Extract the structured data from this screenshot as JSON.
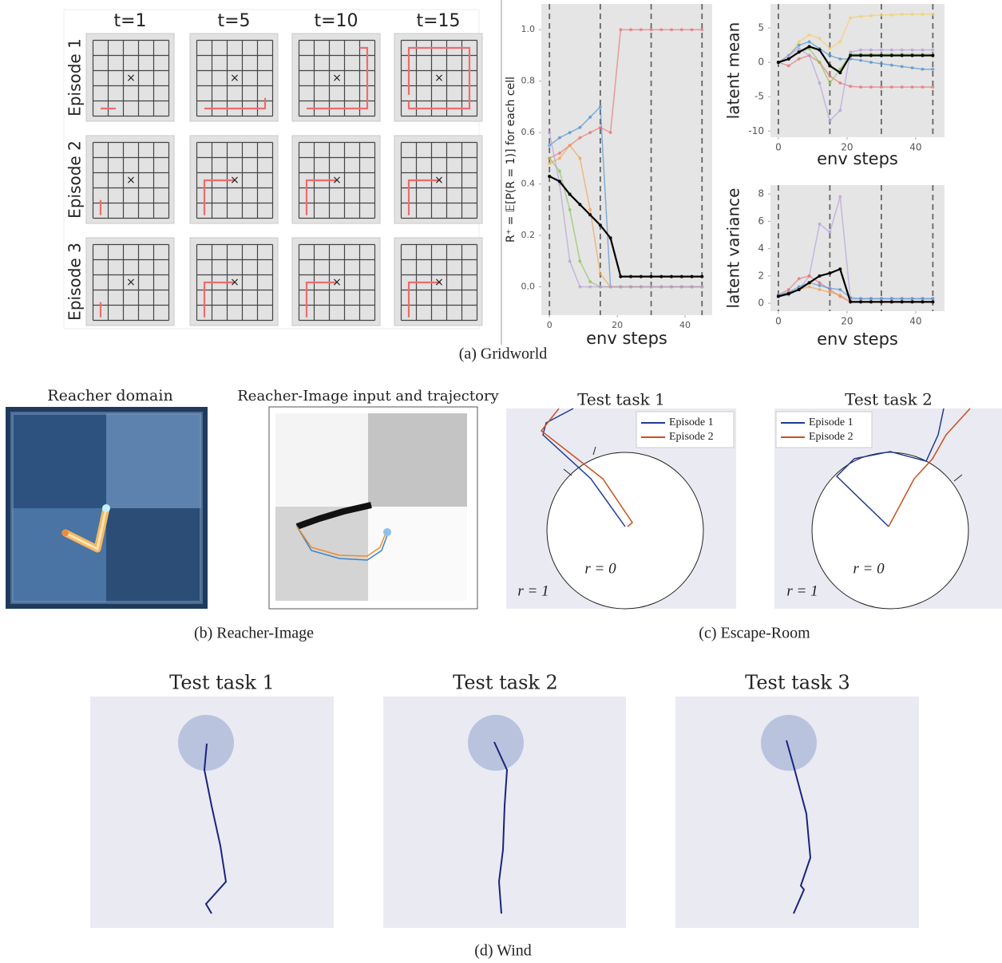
{
  "gridworld": {
    "columns": [
      "t=1",
      "t=5",
      "t=10",
      "t=15"
    ],
    "rows": [
      "Episode 1",
      "Episode 2",
      "Episode 3"
    ],
    "goal_marker": "×",
    "caption": "(a) Gridworld"
  },
  "chart_data": [
    {
      "type": "line",
      "ylabel": "R⁺ = 𝔼[P(R = 1)] for each cell",
      "xlabel": "env steps",
      "x": [
        0,
        3,
        6,
        9,
        12,
        15,
        18,
        21,
        24,
        27,
        30,
        33,
        36,
        39,
        42,
        45
      ],
      "xlim": [
        -2.4,
        48
      ],
      "ylim": [
        -0.11,
        1.1
      ],
      "xticks": [
        0,
        20,
        40
      ],
      "yticks": [
        {
          "value": 0,
          "label": "0.0"
        },
        0.2,
        0.4,
        0.6,
        0.8,
        {
          "value": 1,
          "label": "1.0"
        }
      ],
      "vlines": [
        0,
        15,
        30,
        45
      ],
      "series": [
        {
          "color": "#e8706e",
          "values": [
            0.5,
            0.52,
            0.55,
            0.58,
            0.6,
            0.62,
            0.6,
            1.0,
            1.0,
            1.0,
            1.0,
            1.0,
            1.0,
            1.0,
            1.0,
            1.0
          ]
        },
        {
          "color": "#4f8fd0",
          "values": [
            0.55,
            0.58,
            0.6,
            0.62,
            0.66,
            0.7,
            0.0,
            0.0,
            0.0,
            0.0,
            0.0,
            0.0,
            0.0,
            0.0,
            0.0,
            0.0
          ]
        },
        {
          "color": "#8cc152",
          "values": [
            0.5,
            0.45,
            0.3,
            0.1,
            0.02,
            0.0,
            0.0,
            0.0,
            0.0,
            0.0,
            0.0,
            0.0,
            0.0,
            0.0,
            0.0,
            0.0
          ]
        },
        {
          "color": "#f0a050",
          "values": [
            0.48,
            0.5,
            0.55,
            0.5,
            0.3,
            0.05,
            0.0,
            0.0,
            0.0,
            0.0,
            0.0,
            0.0,
            0.0,
            0.0,
            0.0,
            0.0
          ]
        },
        {
          "color": "#b39ddb",
          "values": [
            0.6,
            0.4,
            0.1,
            0.0,
            0.0,
            0.0,
            0.0,
            0.0,
            0.0,
            0.0,
            0.0,
            0.0,
            0.0,
            0.0,
            0.0,
            0.0
          ]
        },
        {
          "color": "#000000",
          "values": [
            0.43,
            0.41,
            0.36,
            0.32,
            0.28,
            0.24,
            0.19,
            0.04,
            0.04,
            0.04,
            0.04,
            0.04,
            0.04,
            0.04,
            0.04,
            0.04
          ]
        }
      ]
    },
    {
      "type": "line",
      "ylabel": "latent mean",
      "xlabel": "env steps",
      "x": [
        0,
        3,
        6,
        9,
        12,
        15,
        18,
        21,
        24,
        27,
        30,
        33,
        36,
        39,
        42,
        45
      ],
      "xlim": [
        -2.3,
        48.4
      ],
      "ylim": [
        -10.9,
        8.5
      ],
      "xticks": [
        0,
        20,
        40
      ],
      "yticks": [
        -10,
        -5,
        0,
        5
      ],
      "vlines": [
        0,
        15,
        30,
        45
      ],
      "series": [
        {
          "color": "#f5d061",
          "values": [
            0,
            1,
            3,
            4,
            3.5,
            2,
            3,
            6.5,
            6.7,
            6.8,
            6.9,
            6.9,
            7,
            7,
            7,
            7
          ]
        },
        {
          "color": "#4f8fd0",
          "values": [
            0,
            1,
            2.5,
            3,
            2,
            1,
            0.5,
            0.5,
            0.3,
            0,
            -0.2,
            -0.4,
            -0.6,
            -0.8,
            -1,
            -1
          ]
        },
        {
          "color": "#e8706e",
          "values": [
            0,
            -0.5,
            0.5,
            1,
            0,
            -2,
            -3,
            -3.5,
            -3.6,
            -3.6,
            -3.6,
            -3.6,
            -3.6,
            -3.6,
            -3.6,
            -3.6
          ]
        },
        {
          "color": "#b39ddb",
          "values": [
            0,
            1,
            2,
            1,
            -3,
            -8.5,
            -7,
            1.5,
            1.8,
            1.8,
            1.8,
            1.8,
            1.8,
            1.8,
            1.8,
            1.8
          ]
        },
        {
          "color": "#8cc152",
          "values": [
            0,
            0.5,
            1.5,
            2,
            0,
            -3,
            -1,
            1.2,
            1.2,
            1.2,
            1.2,
            1.2,
            1.2,
            1.2,
            1.2,
            1.2
          ]
        },
        {
          "color": "#000000",
          "values": [
            0,
            0.5,
            1.5,
            2.3,
            1.8,
            -0.5,
            -1.5,
            1,
            1,
            1,
            1,
            1,
            1,
            1,
            1,
            1
          ]
        }
      ]
    },
    {
      "type": "line",
      "ylabel": "latent variance",
      "xlabel": "env steps",
      "x": [
        0,
        3,
        6,
        9,
        12,
        15,
        18,
        21,
        24,
        27,
        30,
        33,
        36,
        39,
        42,
        45
      ],
      "xlim": [
        -2.3,
        48.4
      ],
      "ylim": [
        -0.58,
        8.65
      ],
      "xticks": [
        0,
        20,
        40
      ],
      "yticks": [
        0,
        2,
        4,
        6,
        8
      ],
      "vlines": [
        0,
        15,
        30,
        45
      ],
      "series": [
        {
          "color": "#b39ddb",
          "values": [
            0.5,
            0.6,
            1,
            2,
            5.8,
            5.2,
            7.8,
            0.3,
            0.3,
            0.3,
            0.3,
            0.3,
            0.3,
            0.3,
            0.3,
            0.3
          ]
        },
        {
          "color": "#e8706e",
          "values": [
            0.6,
            1,
            1.8,
            2,
            1.5,
            1,
            0.5,
            0.1,
            0.1,
            0.1,
            0.1,
            0.1,
            0.1,
            0.1,
            0.1,
            0.1
          ]
        },
        {
          "color": "#4f8fd0",
          "values": [
            0.6,
            0.8,
            1.2,
            1.5,
            1.3,
            1.1,
            1,
            0.4,
            0.35,
            0.35,
            0.35,
            0.35,
            0.35,
            0.35,
            0.35,
            0.35
          ]
        },
        {
          "color": "#f0a050",
          "values": [
            0.5,
            0.7,
            1,
            1.2,
            1,
            0.8,
            0.6,
            0.1,
            0.1,
            0.1,
            0.1,
            0.1,
            0.1,
            0.1,
            0.1,
            0.1
          ]
        },
        {
          "color": "#000000",
          "values": [
            0.5,
            0.7,
            1,
            1.5,
            2,
            2.2,
            2.5,
            0.1,
            0.1,
            0.1,
            0.1,
            0.1,
            0.1,
            0.1,
            0.1,
            0.1
          ]
        }
      ]
    }
  ],
  "reacher": {
    "domain_title": "Reacher domain",
    "image_title": "Reacher-Image input and trajectory",
    "caption": "(b) Reacher-Image"
  },
  "escape_room": {
    "titles": [
      "Test task 1",
      "Test task 2"
    ],
    "legend": [
      "Episode 1",
      "Episode 2"
    ],
    "inner_label": "r = 0",
    "outer_label": "r = 1",
    "caption": "(c) Escape-Room"
  },
  "wind": {
    "titles": [
      "Test task 1",
      "Test task 2",
      "Test task 3"
    ],
    "caption": "(d) Wind"
  }
}
